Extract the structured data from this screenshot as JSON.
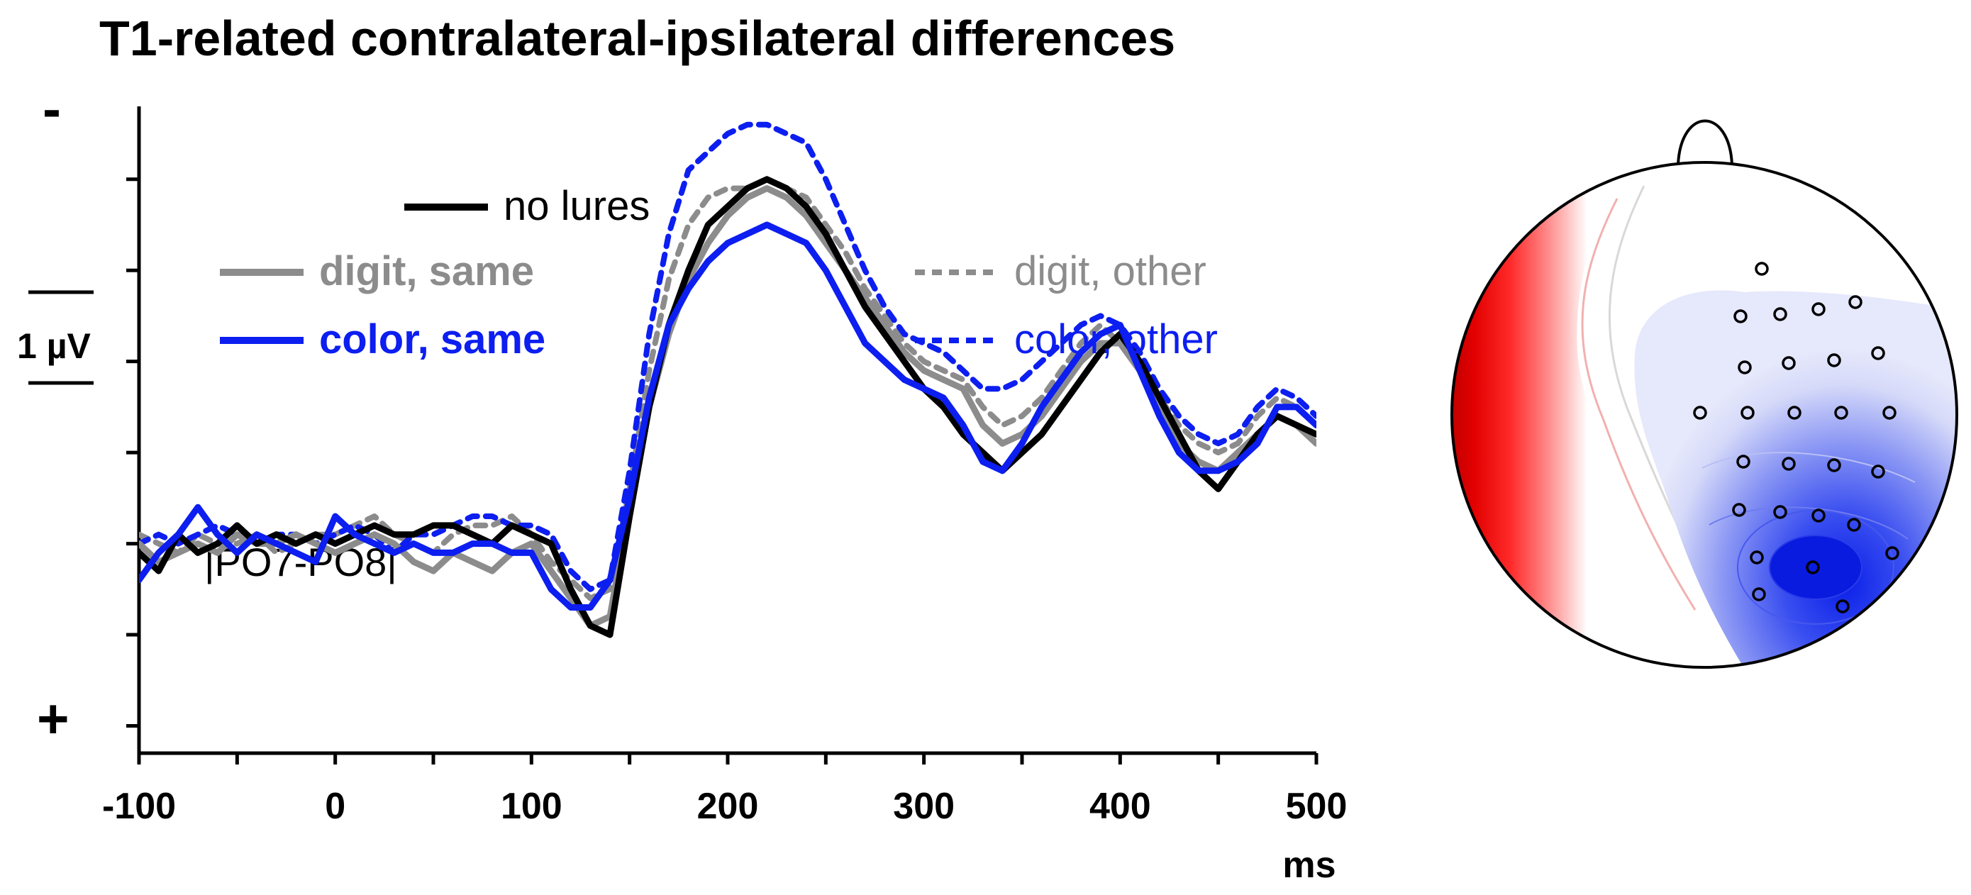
{
  "chart_data": {
    "type": "line",
    "title": "T1-related contralateral-ipsilateral differences",
    "xlabel": "ms",
    "ylabel": "",
    "x_ticks": [
      -100,
      0,
      100,
      200,
      300,
      400,
      500
    ],
    "xlim": [
      -100,
      500
    ],
    "ylim": [
      -2.3,
      4.8
    ],
    "y_inverted": true,
    "y_negative_label": "-",
    "y_positive_label": "+",
    "scale_bar_label": "1 µV",
    "annotation": "|PO7-PO8|",
    "legend_placement": "upper-left",
    "legend_rows": [
      [
        "none"
      ],
      [
        "digit_same",
        "digit_other"
      ],
      [
        "color_same",
        "color_other"
      ]
    ],
    "series": [
      {
        "id": "none",
        "name": "no lures",
        "color": "#000000",
        "dash": "solid",
        "bold": false,
        "x": [
          -100,
          -90,
          -80,
          -70,
          -60,
          -50,
          -40,
          -30,
          -20,
          -10,
          0,
          10,
          20,
          30,
          40,
          50,
          60,
          70,
          80,
          90,
          100,
          110,
          120,
          130,
          140,
          150,
          160,
          170,
          180,
          190,
          200,
          210,
          220,
          230,
          240,
          250,
          260,
          270,
          280,
          290,
          300,
          310,
          320,
          330,
          340,
          350,
          360,
          370,
          380,
          390,
          400,
          410,
          420,
          430,
          440,
          450,
          460,
          470,
          480,
          490,
          500
        ],
        "values": [
          -0.1,
          -0.3,
          0.1,
          -0.1,
          0.0,
          0.2,
          0.0,
          0.1,
          0.0,
          0.1,
          0.0,
          0.1,
          0.2,
          0.1,
          0.1,
          0.2,
          0.2,
          0.1,
          0.0,
          0.2,
          0.1,
          0.0,
          -0.5,
          -0.9,
          -1.0,
          0.3,
          1.5,
          2.4,
          3.0,
          3.5,
          3.7,
          3.9,
          4.0,
          3.9,
          3.7,
          3.4,
          3.0,
          2.6,
          2.3,
          2.0,
          1.7,
          1.5,
          1.2,
          1.0,
          0.8,
          1.0,
          1.2,
          1.5,
          1.8,
          2.1,
          2.3,
          2.0,
          1.6,
          1.2,
          0.8,
          0.6,
          0.9,
          1.2,
          1.4,
          1.3,
          1.2
        ]
      },
      {
        "id": "digit_same",
        "name": "digit, same",
        "color": "#8c8c8c",
        "dash": "solid",
        "bold": true,
        "x": [
          -100,
          -90,
          -80,
          -70,
          -60,
          -50,
          -40,
          -30,
          -20,
          -10,
          0,
          10,
          20,
          30,
          40,
          50,
          60,
          70,
          80,
          90,
          100,
          110,
          120,
          130,
          140,
          150,
          160,
          170,
          180,
          190,
          200,
          210,
          220,
          230,
          240,
          250,
          260,
          270,
          280,
          290,
          300,
          310,
          320,
          330,
          340,
          350,
          360,
          370,
          380,
          390,
          400,
          410,
          420,
          430,
          440,
          450,
          460,
          470,
          480,
          490,
          500
        ],
        "values": [
          0.0,
          -0.2,
          -0.1,
          0.0,
          -0.1,
          0.1,
          0.0,
          0.0,
          0.1,
          0.0,
          -0.1,
          0.0,
          0.1,
          0.0,
          -0.2,
          -0.3,
          -0.1,
          -0.2,
          -0.3,
          -0.1,
          0.0,
          -0.3,
          -0.6,
          -0.9,
          -0.8,
          0.4,
          1.5,
          2.3,
          2.9,
          3.3,
          3.6,
          3.8,
          3.9,
          3.8,
          3.6,
          3.3,
          3.0,
          2.7,
          2.4,
          2.1,
          1.9,
          1.8,
          1.7,
          1.3,
          1.1,
          1.2,
          1.4,
          1.7,
          2.0,
          2.2,
          2.2,
          1.9,
          1.5,
          1.1,
          0.9,
          0.8,
          1.0,
          1.2,
          1.4,
          1.3,
          1.1
        ]
      },
      {
        "id": "digit_other",
        "name": "digit, other",
        "color": "#8c8c8c",
        "dash": "dashed",
        "bold": false,
        "x": [
          -100,
          -90,
          -80,
          -70,
          -60,
          -50,
          -40,
          -30,
          -20,
          -10,
          0,
          10,
          20,
          30,
          40,
          50,
          60,
          70,
          80,
          90,
          100,
          110,
          120,
          130,
          140,
          150,
          160,
          170,
          180,
          190,
          200,
          210,
          220,
          230,
          240,
          250,
          260,
          270,
          280,
          290,
          300,
          310,
          320,
          330,
          340,
          350,
          360,
          370,
          380,
          390,
          400,
          410,
          420,
          430,
          440,
          450,
          460,
          470,
          480,
          490,
          500
        ],
        "values": [
          0.1,
          0.0,
          -0.1,
          0.1,
          0.0,
          0.0,
          0.1,
          -0.1,
          0.0,
          0.1,
          0.1,
          0.2,
          0.3,
          0.1,
          0.0,
          -0.1,
          0.1,
          0.2,
          0.2,
          0.3,
          0.1,
          -0.2,
          -0.4,
          -0.6,
          -0.5,
          0.6,
          1.9,
          2.9,
          3.5,
          3.8,
          3.9,
          3.9,
          4.0,
          3.9,
          3.8,
          3.5,
          3.2,
          2.8,
          2.5,
          2.2,
          2.0,
          1.9,
          1.8,
          1.5,
          1.3,
          1.4,
          1.6,
          1.9,
          2.2,
          2.4,
          2.2,
          1.9,
          1.6,
          1.3,
          1.1,
          1.0,
          1.1,
          1.4,
          1.6,
          1.5,
          1.3
        ]
      },
      {
        "id": "color_same",
        "name": "color, same",
        "color": "#0c1ef0",
        "dash": "solid",
        "bold": true,
        "x": [
          -100,
          -90,
          -80,
          -70,
          -60,
          -50,
          -40,
          -30,
          -20,
          -10,
          0,
          10,
          20,
          30,
          40,
          50,
          60,
          70,
          80,
          90,
          100,
          110,
          120,
          130,
          140,
          150,
          160,
          170,
          180,
          190,
          200,
          210,
          220,
          230,
          240,
          250,
          260,
          270,
          280,
          290,
          300,
          310,
          320,
          330,
          340,
          350,
          360,
          370,
          380,
          390,
          400,
          410,
          420,
          430,
          440,
          450,
          460,
          470,
          480,
          490,
          500
        ],
        "values": [
          -0.4,
          -0.1,
          0.1,
          0.4,
          0.1,
          -0.1,
          0.1,
          0.0,
          -0.1,
          -0.2,
          0.3,
          0.1,
          0.0,
          -0.1,
          0.0,
          -0.1,
          -0.1,
          0.0,
          0.0,
          -0.1,
          -0.1,
          -0.5,
          -0.7,
          -0.7,
          -0.4,
          0.5,
          1.6,
          2.4,
          2.8,
          3.1,
          3.3,
          3.4,
          3.5,
          3.4,
          3.3,
          3.0,
          2.6,
          2.2,
          2.0,
          1.8,
          1.7,
          1.6,
          1.3,
          0.9,
          0.8,
          1.1,
          1.5,
          1.8,
          2.1,
          2.3,
          2.4,
          1.9,
          1.4,
          1.0,
          0.8,
          0.8,
          0.9,
          1.1,
          1.5,
          1.5,
          1.3
        ]
      },
      {
        "id": "color_other",
        "name": "color, other",
        "color": "#0c1ef0",
        "dash": "dashed",
        "bold": false,
        "x": [
          -100,
          -90,
          -80,
          -70,
          -60,
          -50,
          -40,
          -30,
          -20,
          -10,
          0,
          10,
          20,
          30,
          40,
          50,
          60,
          70,
          80,
          90,
          100,
          110,
          120,
          130,
          140,
          150,
          160,
          170,
          180,
          190,
          200,
          210,
          220,
          230,
          240,
          250,
          260,
          270,
          280,
          290,
          300,
          310,
          320,
          330,
          340,
          350,
          360,
          370,
          380,
          390,
          400,
          410,
          420,
          430,
          440,
          450,
          460,
          470,
          480,
          490,
          500
        ],
        "values": [
          0.0,
          0.1,
          0.0,
          0.1,
          0.2,
          0.1,
          0.0,
          0.1,
          0.1,
          0.0,
          0.1,
          0.2,
          0.1,
          -0.1,
          0.1,
          0.1,
          0.2,
          0.3,
          0.3,
          0.2,
          0.2,
          0.1,
          -0.3,
          -0.5,
          -0.4,
          0.8,
          2.3,
          3.4,
          4.1,
          4.3,
          4.5,
          4.6,
          4.6,
          4.5,
          4.4,
          4.0,
          3.5,
          3.0,
          2.6,
          2.3,
          2.2,
          2.1,
          1.9,
          1.7,
          1.7,
          1.8,
          2.0,
          2.2,
          2.4,
          2.5,
          2.4,
          2.1,
          1.7,
          1.4,
          1.2,
          1.1,
          1.2,
          1.5,
          1.7,
          1.6,
          1.4
        ]
      }
    ]
  },
  "topo_map": {
    "colors": {
      "max_negative": "#1128e6",
      "mid_negative": "#8a96f3",
      "light_negative": "#dfe2fb",
      "neutral": "#ffffff",
      "light_positive": "#fbe1e1",
      "mid_positive": "#ff5050",
      "max_positive": "#f20000",
      "dark_positive": "#b80000",
      "outline": "#000000"
    },
    "electrode_count": 30
  }
}
